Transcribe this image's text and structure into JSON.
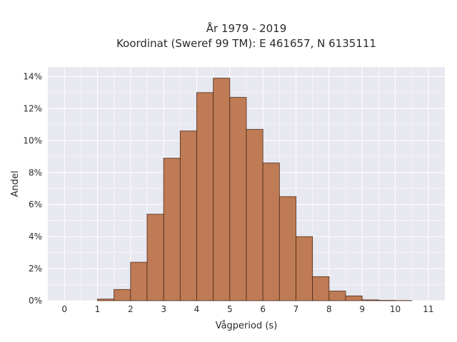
{
  "chart_data": {
    "type": "bar",
    "title_line1": "År 1979 - 2019",
    "title_line2": "Koordinat (Sweref 99 TM): E 461657, N 6135111",
    "xlabel": "Vågperiod (s)",
    "ylabel": "Andel",
    "x_ticks": [
      "0",
      "1",
      "2",
      "3",
      "4",
      "5",
      "6",
      "7",
      "8",
      "9",
      "10",
      "11"
    ],
    "y_ticks": [
      "0%",
      "2%",
      "4%",
      "6%",
      "8%",
      "10%",
      "12%",
      "14%"
    ],
    "xlim": [
      -0.5,
      11.5
    ],
    "ylim": [
      0,
      14.6
    ],
    "bin_width": 0.5,
    "bins_start": [
      1.0,
      1.5,
      2.0,
      2.5,
      3.0,
      3.5,
      4.0,
      4.5,
      5.0,
      5.5,
      6.0,
      6.5,
      7.0,
      7.5,
      8.0,
      8.5,
      9.0,
      9.5,
      10.0
    ],
    "values": [
      0.1,
      0.7,
      2.4,
      5.4,
      8.9,
      10.6,
      13.0,
      13.9,
      12.7,
      10.7,
      8.6,
      6.5,
      4.0,
      1.5,
      0.6,
      0.3,
      0.05,
      0.02,
      0.01
    ],
    "grid": true,
    "colors": {
      "plot_bg": "#e8e8f0",
      "grid": "#ffffff",
      "bar_fill": "#bf7b55",
      "bar_edge": "#4a2a1a"
    }
  }
}
